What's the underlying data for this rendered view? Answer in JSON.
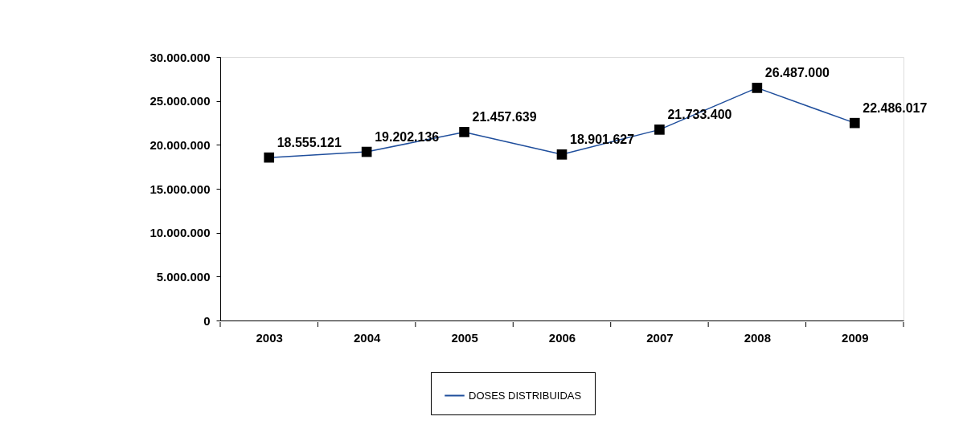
{
  "chart_data": {
    "type": "line",
    "categories": [
      "2003",
      "2004",
      "2005",
      "2006",
      "2007",
      "2008",
      "2009"
    ],
    "series": [
      {
        "name": "DOSES DISTRIBUIDAS",
        "color": "#1f4e9c",
        "values": [
          18555121,
          19202136,
          21457639,
          18901627,
          21733400,
          26487000,
          22486017
        ],
        "value_labels": [
          "18.555.121",
          "19.202.136",
          "21.457.639",
          "18.901.627",
          "21.733.400",
          "26.487.000",
          "22.486.017"
        ]
      }
    ],
    "ylim": [
      0,
      30000000
    ],
    "yticks": [
      0,
      {
        "value": 5000000,
        "label": "5.000.000"
      },
      {
        "value": 10000000,
        "label": "10.000.000"
      },
      {
        "value": 15000000,
        "label": "15.000.000"
      },
      {
        "value": 20000000,
        "label": "20.000.000"
      },
      {
        "value": 25000000,
        "label": "25.000.000"
      },
      {
        "value": 30000000,
        "label": "30.000.000"
      }
    ],
    "grid": false,
    "legend": "bottom",
    "marker": "square",
    "line_style": "solid"
  }
}
